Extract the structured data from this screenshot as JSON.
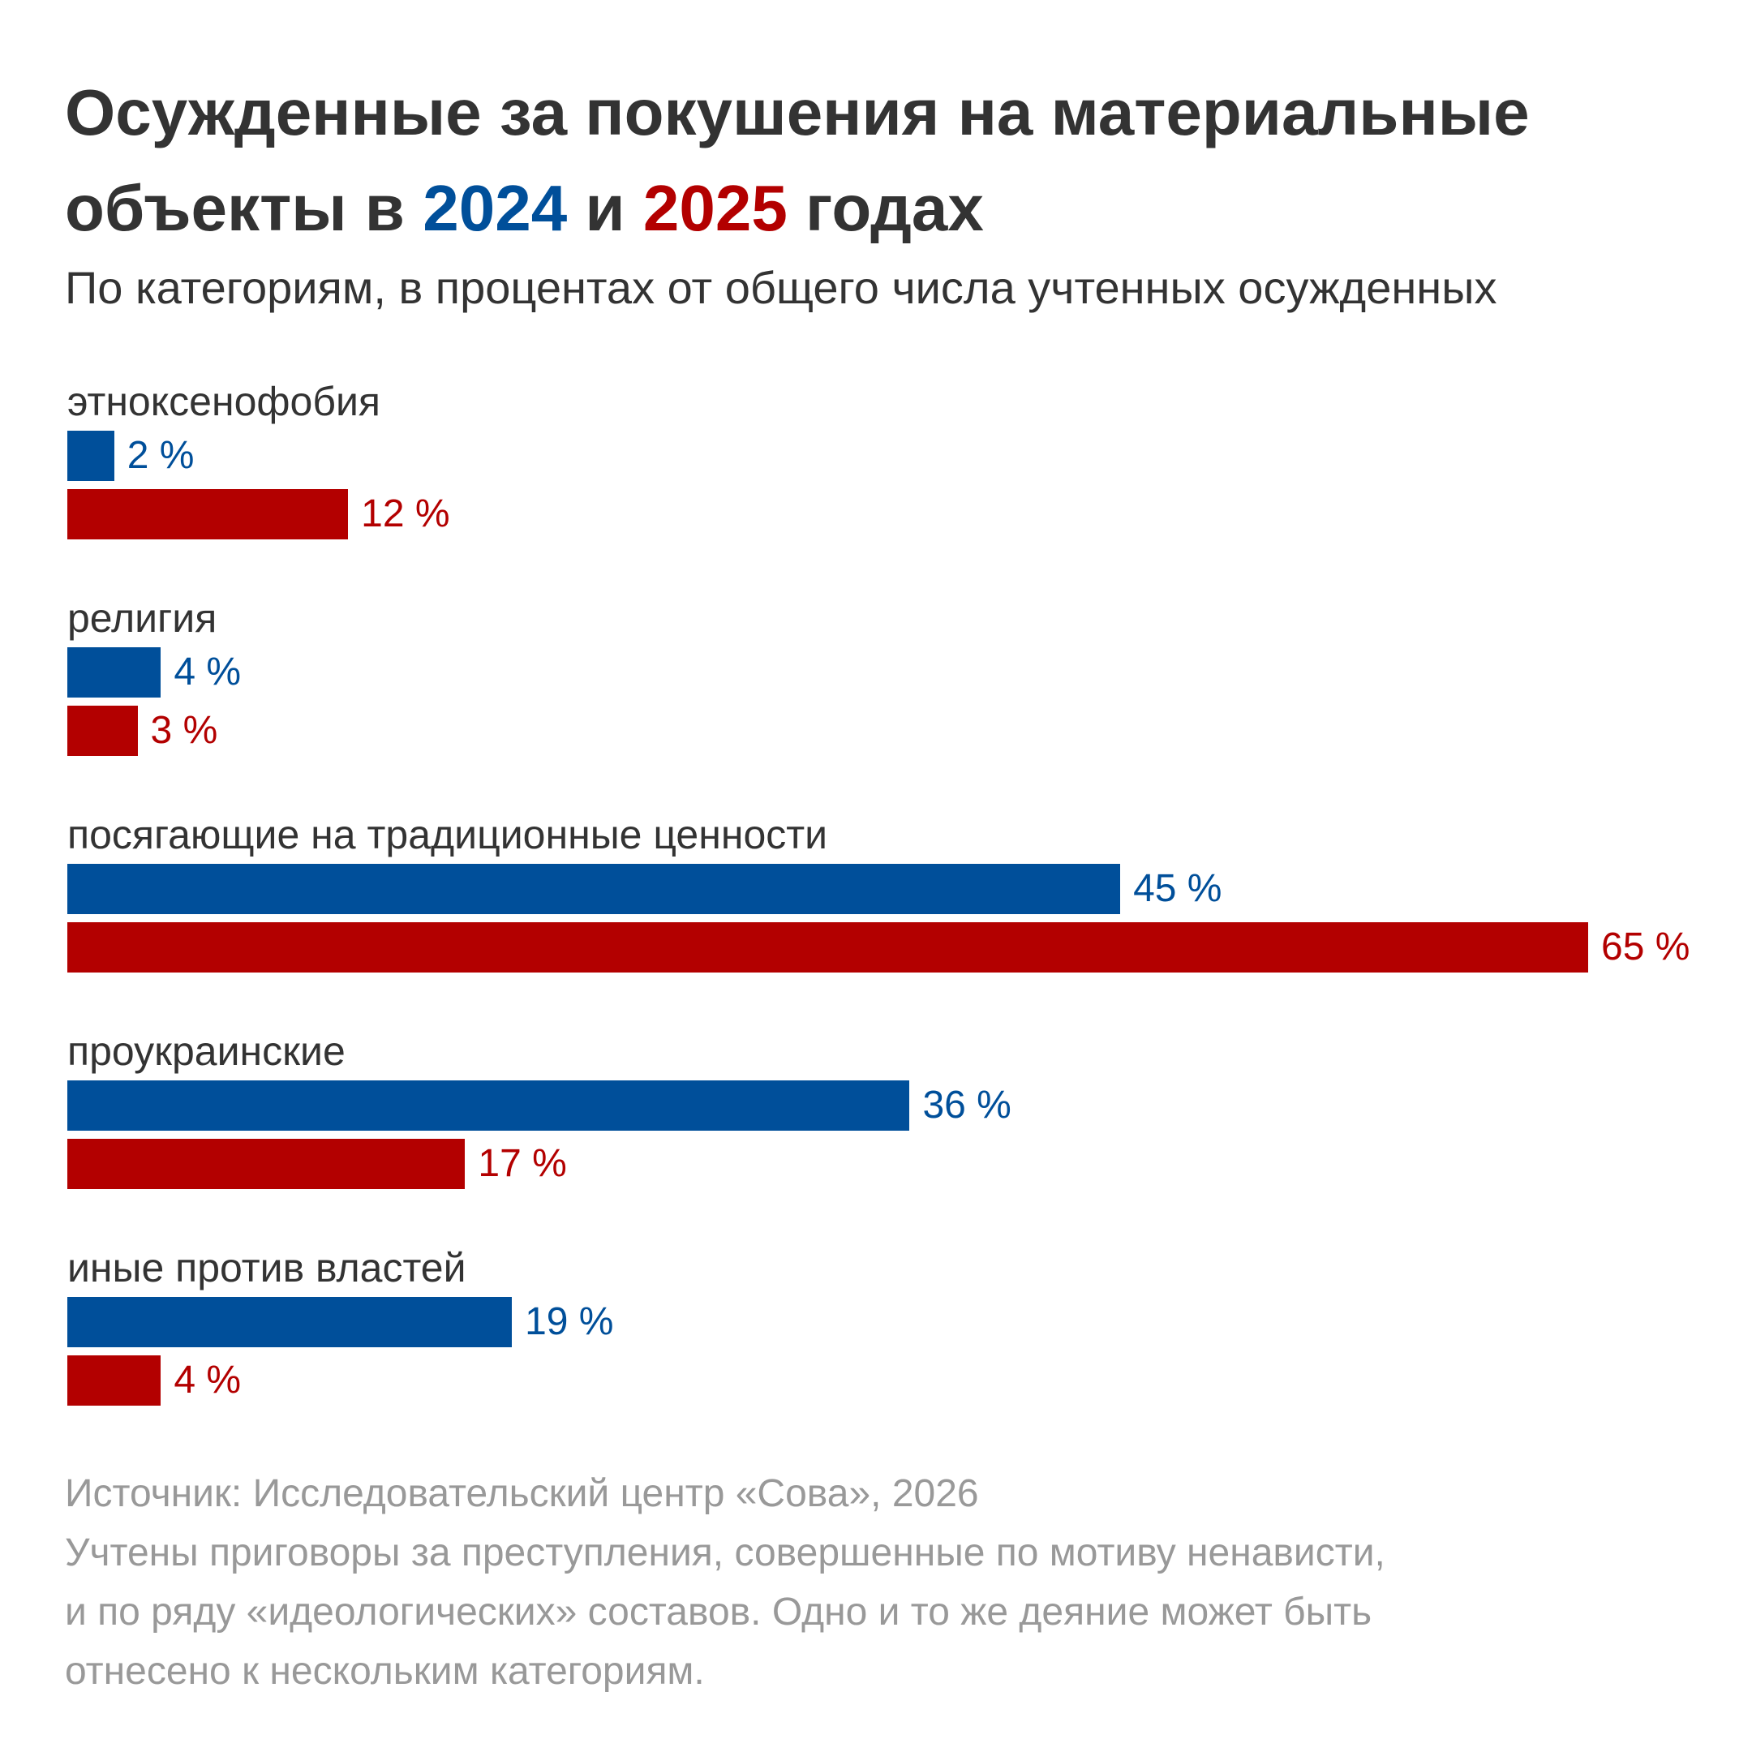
{
  "title": {
    "line1": "Осужденные за покушения на материальные",
    "line2_prefix": "объекты в",
    "year1": "2024",
    "conj": "и",
    "year2": "2025",
    "line2_suffix": "годах"
  },
  "subtitle": "По категориям, в процентах от общего числа учтенных осужденных",
  "colors": {
    "2024": "#004f9a",
    "2025": "#b30000",
    "text": "#333333",
    "footer": "#999999"
  },
  "chart_data": {
    "type": "bar",
    "orientation": "horizontal",
    "categories": [
      "этноксенофобия",
      "религия",
      "посягающие на традиционные ценности",
      "проукраинские",
      "иные против властей"
    ],
    "series": [
      {
        "name": "2024",
        "values": [
          2,
          4,
          45,
          36,
          19
        ],
        "labels": [
          "2 %",
          "4 %",
          "45 %",
          "36 %",
          "19 %"
        ]
      },
      {
        "name": "2025",
        "values": [
          12,
          3,
          65,
          17,
          4
        ],
        "labels": [
          "12 %",
          "3 %",
          "65 %",
          "17 %",
          "4 %"
        ]
      }
    ],
    "xlim": [
      0,
      65
    ],
    "grid": false
  },
  "footer": {
    "source": "Источник: Исследовательский центр «Сова», 2026",
    "note1": "Учтены приговоры за преступления, совершенные по мотиву ненависти,",
    "note2": "и по ряду «идеологических» составов. Одно и то же деяние может быть",
    "note3": "отнесено к нескольким категориям."
  }
}
